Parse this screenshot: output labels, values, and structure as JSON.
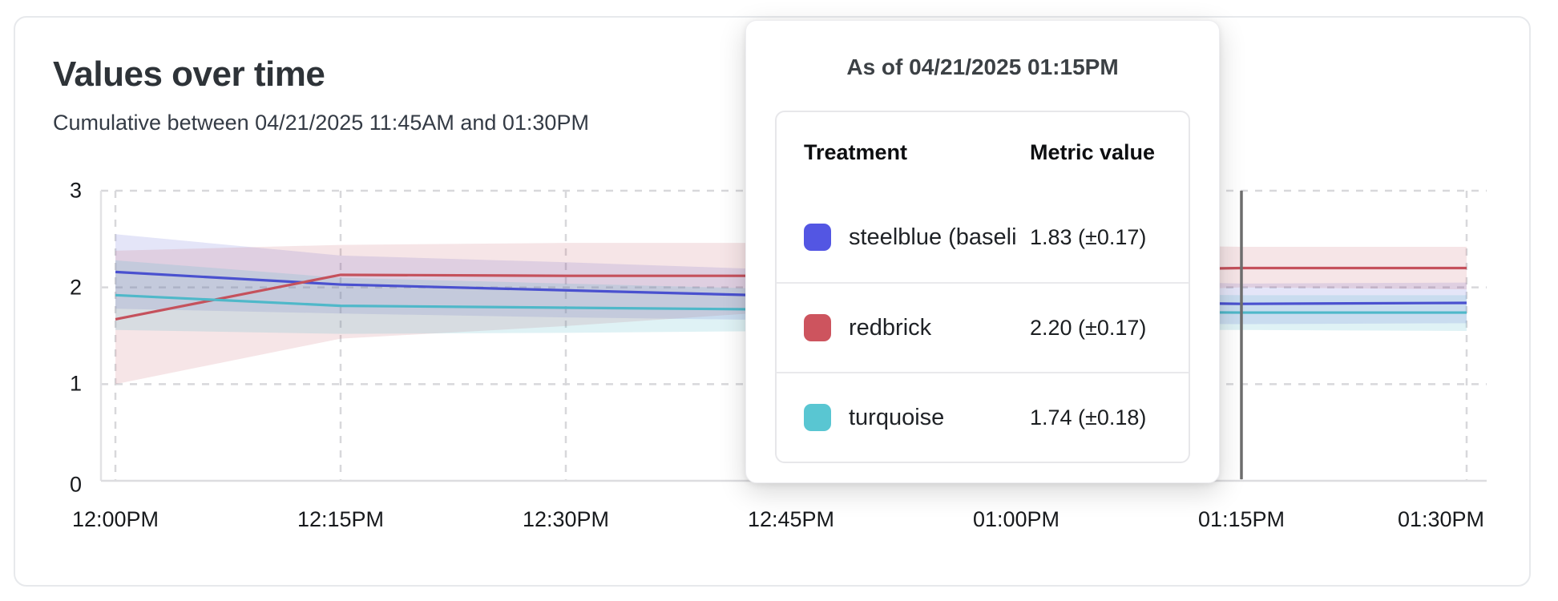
{
  "header": {
    "title": "Values over time",
    "subtitle": "Cumulative between 04/21/2025 11:45AM and 01:30PM"
  },
  "tooltip": {
    "title": "As of 04/21/2025 01:15PM",
    "columns": [
      "Treatment",
      "Metric value"
    ],
    "rows": [
      {
        "label": "steelblue  (baseli",
        "value": "1.83 (±0.17)",
        "color": "#5356e3"
      },
      {
        "label": "redbrick",
        "value": "2.20 (±0.17)",
        "color": "#cd545e"
      },
      {
        "label": "turquoise",
        "value": "1.74 (±0.18)",
        "color": "#59c6d2"
      }
    ]
  },
  "chart_data": {
    "type": "line",
    "title": "Values over time",
    "x_labels": [
      "12:00PM",
      "12:15PM",
      "12:30PM",
      "12:45PM",
      "01:00PM",
      "01:15PM",
      "01:30PM"
    ],
    "y_ticks": [
      0,
      1,
      2,
      3
    ],
    "ylim": [
      0,
      3
    ],
    "grid": "dashed",
    "legend_position": "tooltip",
    "hover": {
      "x_label": "01:15PM",
      "x_index": 5,
      "line_color": "#6e6e6e"
    },
    "series": [
      {
        "name": "steelblue",
        "color": "#4a51cf",
        "band_color": "rgba(74,81,207,0.15)",
        "values": [
          2.16,
          2.03,
          1.97,
          1.91,
          1.86,
          1.83,
          1.84
        ],
        "band_high": [
          2.55,
          2.33,
          2.26,
          2.18,
          2.1,
          2.04,
          2.05
        ],
        "band_low": [
          1.78,
          1.73,
          1.69,
          1.66,
          1.63,
          1.62,
          1.63
        ]
      },
      {
        "name": "redbrick",
        "color": "#c5515c",
        "band_color": "rgba(197,81,92,0.15)",
        "values": [
          1.67,
          2.13,
          2.12,
          2.12,
          2.17,
          2.2,
          2.2
        ],
        "band_high": [
          2.38,
          2.44,
          2.46,
          2.46,
          2.45,
          2.42,
          2.42
        ],
        "band_low": [
          1.0,
          1.47,
          1.6,
          1.76,
          1.92,
          2.0,
          1.98
        ]
      },
      {
        "name": "turquoise",
        "color": "#4fb8c9",
        "band_color": "rgba(79,184,201,0.18)",
        "values": [
          1.92,
          1.81,
          1.79,
          1.77,
          1.75,
          1.74,
          1.74
        ],
        "band_high": [
          2.28,
          2.1,
          2.04,
          1.98,
          1.94,
          1.92,
          1.92
        ],
        "band_low": [
          1.56,
          1.52,
          1.53,
          1.55,
          1.56,
          1.56,
          1.55
        ]
      }
    ]
  }
}
